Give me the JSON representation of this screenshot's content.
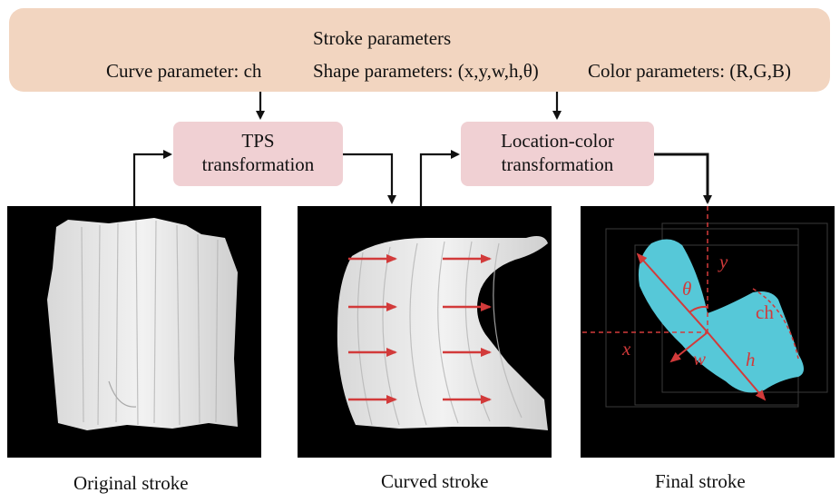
{
  "header": {
    "title": "Stroke parameters",
    "curve_label": "Curve parameter: ch",
    "shape_label": "Shape parameters: (x,y,w,h,θ)",
    "color_label": "Color parameters: (R,G,B)"
  },
  "boxes": {
    "tps_line1": "TPS",
    "tps_line2": "transformation",
    "loc_line1": "Location-color",
    "loc_line2": "transformation"
  },
  "panels": {
    "final_labels": {
      "y": "y",
      "theta": "θ",
      "ch": "ch",
      "x": "x",
      "w": "w",
      "h": "h"
    }
  },
  "captions": {
    "original": "Original stroke",
    "curved": "Curved stroke",
    "final": "Final stroke"
  },
  "colors": {
    "param_bg": "#f2d5c0",
    "box_bg": "#f0d0d3",
    "arrow_red": "#d23a3a",
    "stroke_cyan": "#56c8d8",
    "stroke_white": "#e6e6e6"
  }
}
